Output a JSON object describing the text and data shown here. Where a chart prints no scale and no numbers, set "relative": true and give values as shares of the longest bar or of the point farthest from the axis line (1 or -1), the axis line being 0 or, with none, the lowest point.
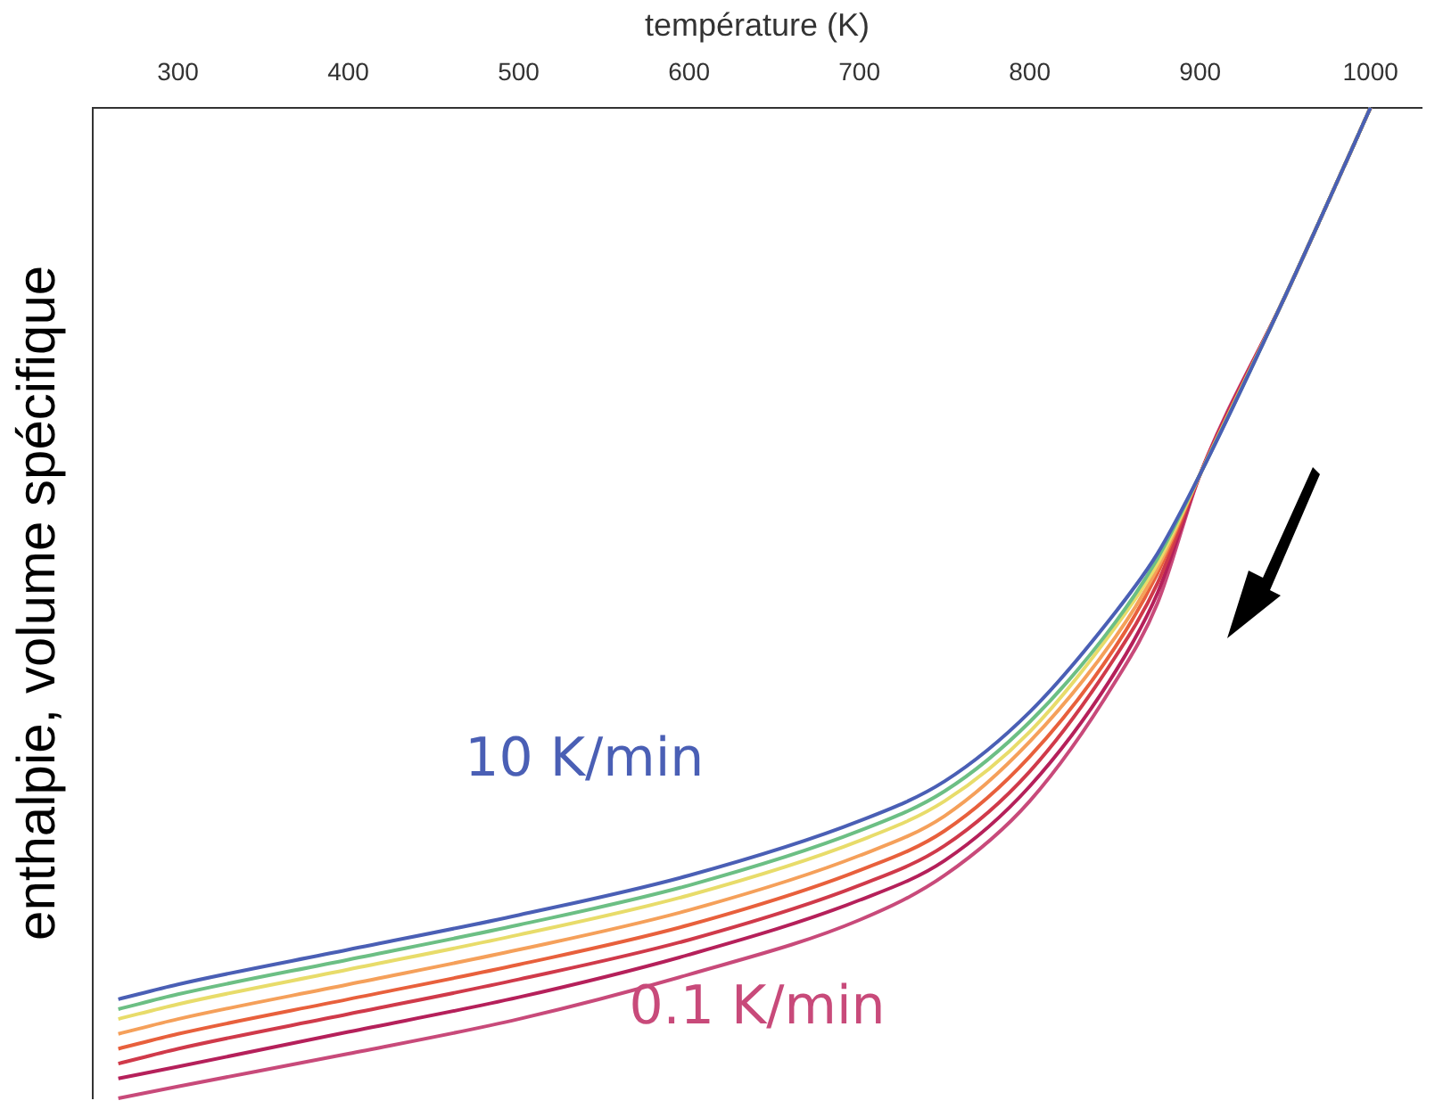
{
  "chart_data": {
    "type": "line",
    "relative": true,
    "xlabel": "température (K)",
    "ylabel": "enthalpie, volume spécifique",
    "xlim": [
      250,
      1030
    ],
    "xticks": [
      300,
      400,
      500,
      600,
      700,
      800,
      900,
      1000
    ],
    "grid": false,
    "legend": false,
    "marker": "none",
    "line_style": "solid",
    "x": [
      265,
      300,
      400,
      500,
      600,
      700,
      750,
      800,
      850,
      875,
      900,
      950,
      1000
    ],
    "series": [
      {
        "color": "#4a5fb5",
        "values": [
          0.1,
          0.115,
          0.15,
          0.185,
          0.225,
          0.28,
          0.32,
          0.39,
          0.49,
          0.55,
          0.63,
          0.81,
          1.0
        ]
      },
      {
        "color": "#6cbf84",
        "values": [
          0.09,
          0.105,
          0.14,
          0.175,
          0.215,
          0.27,
          0.31,
          0.38,
          0.48,
          0.545,
          0.63,
          0.81,
          1.0
        ]
      },
      {
        "color": "#e8dc6a",
        "values": [
          0.08,
          0.095,
          0.13,
          0.165,
          0.205,
          0.26,
          0.3,
          0.37,
          0.475,
          0.54,
          0.63,
          0.81,
          1.0
        ]
      },
      {
        "color": "#f5a05a",
        "values": [
          0.065,
          0.08,
          0.115,
          0.15,
          0.19,
          0.245,
          0.285,
          0.36,
          0.465,
          0.535,
          0.63,
          0.81,
          1.0
        ]
      },
      {
        "color": "#e8603c",
        "values": [
          0.05,
          0.065,
          0.1,
          0.135,
          0.175,
          0.23,
          0.27,
          0.345,
          0.455,
          0.53,
          0.63,
          0.81,
          1.0
        ]
      },
      {
        "color": "#d03a4a",
        "values": [
          0.035,
          0.05,
          0.085,
          0.12,
          0.16,
          0.215,
          0.255,
          0.33,
          0.445,
          0.52,
          0.63,
          0.81,
          1.0
        ]
      },
      {
        "color": "#b5205a",
        "values": [
          0.02,
          0.032,
          0.067,
          0.102,
          0.145,
          0.2,
          0.24,
          0.315,
          0.43,
          0.51,
          0.63,
          0.81,
          1.0
        ]
      },
      {
        "color": "#c84a7a",
        "values": [
          0.0,
          0.012,
          0.045,
          0.08,
          0.125,
          0.18,
          0.225,
          0.3,
          0.42,
          0.5,
          0.63,
          0.81,
          1.0
        ]
      }
    ],
    "annotations": [
      "10 K/min",
      "0.1 K/min"
    ]
  }
}
